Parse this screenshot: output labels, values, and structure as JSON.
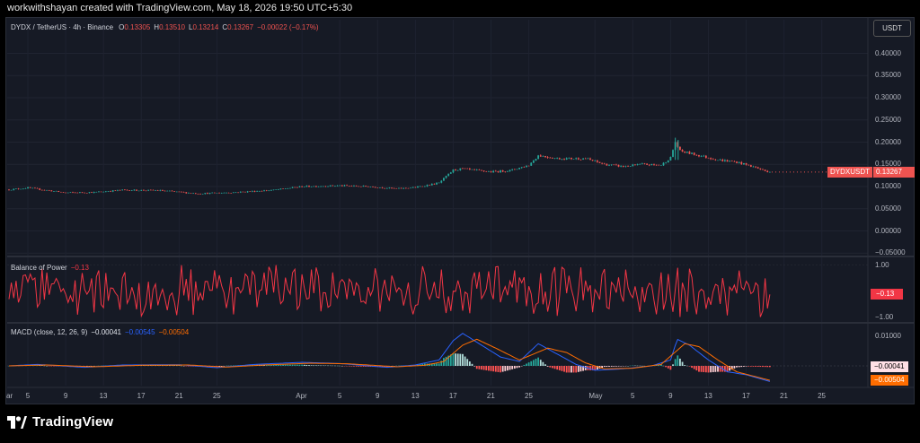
{
  "credit": "workwithshayan created with TradingView.com, May 18, 2026 19:50 UTC+5:30",
  "brand": "TradingView",
  "currency_button": "USDT",
  "main_legend": {
    "symbol": "DYDX / TetherUS · 4h · Binance",
    "o_label": "O",
    "o": "0.13305",
    "h_label": "H",
    "h": "0.13510",
    "l_label": "L",
    "l": "0.13214",
    "c_label": "C",
    "c": "0.13267",
    "change": "−0.00022 (−0.17%)"
  },
  "price_badge": {
    "symbol": "DYDXUSDT",
    "value": "0.13267"
  },
  "bop_legend": {
    "name": "Balance of Power",
    "value": "−0.13"
  },
  "bop_badge": "−0.13",
  "macd_legend": {
    "name": "MACD (close, 12, 26, 9)",
    "hist": "−0.00041",
    "macd": "−0.00545",
    "signal": "−0.00504"
  },
  "macd_badges": {
    "hist": "−0.00041",
    "signal": "−0.00504"
  },
  "colors": {
    "up": "#26a69a",
    "down": "#ef5350",
    "bop": "#f23645",
    "macd": "#2962ff",
    "signal": "#ff6d00",
    "bg": "#161a25"
  },
  "chart_data": [
    {
      "type": "candlestick",
      "title": "DYDX / TetherUS · 4h · Binance",
      "x_ticks": [
        "ar",
        "5",
        "9",
        "13",
        "17",
        "21",
        "25",
        "Apr",
        "5",
        "9",
        "13",
        "17",
        "21",
        "25",
        "May",
        "5",
        "9",
        "13",
        "17",
        "21",
        "25"
      ],
      "y_ticks": [
        "0.40000",
        "0.35000",
        "0.30000",
        "0.25000",
        "0.20000",
        "0.15000",
        "0.10000",
        "0.05000",
        "0.00000",
        "−0.05000"
      ],
      "ylim": [
        -0.065,
        0.41
      ],
      "grid": true,
      "close_path": [
        {
          "day": 0,
          "v": 0.093
        },
        {
          "day": 2,
          "v": 0.097
        },
        {
          "day": 6,
          "v": 0.086
        },
        {
          "day": 9,
          "v": 0.087
        },
        {
          "day": 12,
          "v": 0.092
        },
        {
          "day": 16,
          "v": 0.091
        },
        {
          "day": 20,
          "v": 0.084
        },
        {
          "day": 24,
          "v": 0.087
        },
        {
          "day": 28,
          "v": 0.092
        },
        {
          "day": 31,
          "v": 0.1
        },
        {
          "day": 35,
          "v": 0.102
        },
        {
          "day": 38,
          "v": 0.1
        },
        {
          "day": 41,
          "v": 0.095
        },
        {
          "day": 43,
          "v": 0.098
        },
        {
          "day": 45.5,
          "v": 0.108
        },
        {
          "day": 47,
          "v": 0.137
        },
        {
          "day": 48,
          "v": 0.14
        },
        {
          "day": 49,
          "v": 0.137
        },
        {
          "day": 51,
          "v": 0.133
        },
        {
          "day": 53,
          "v": 0.136
        },
        {
          "day": 55,
          "v": 0.148
        },
        {
          "day": 56,
          "v": 0.17
        },
        {
          "day": 58,
          "v": 0.163
        },
        {
          "day": 61,
          "v": 0.163
        },
        {
          "day": 63,
          "v": 0.15
        },
        {
          "day": 65,
          "v": 0.145
        },
        {
          "day": 67,
          "v": 0.15
        },
        {
          "day": 69,
          "v": 0.148
        },
        {
          "day": 70,
          "v": 0.165
        },
        {
          "day": 70.5,
          "v": 0.2
        },
        {
          "day": 71,
          "v": 0.18
        },
        {
          "day": 73,
          "v": 0.17
        },
        {
          "day": 75,
          "v": 0.16
        },
        {
          "day": 77,
          "v": 0.155
        },
        {
          "day": 79,
          "v": 0.143
        },
        {
          "day": 80,
          "v": 0.135
        },
        {
          "day": 80.7,
          "v": 0.1327
        }
      ],
      "last_close": 0.13267
    },
    {
      "type": "line",
      "title": "Balance of Power",
      "y_ticks": [
        "1.00",
        "−1.00"
      ],
      "ylim": [
        -1.1,
        1.1
      ],
      "last_value": -0.13
    },
    {
      "type": "line+histogram",
      "title": "MACD (close, 12, 26, 9)",
      "y_ticks": [
        "0.01000"
      ],
      "ylim": [
        -0.0065,
        0.0135
      ],
      "series": [
        {
          "name": "MACD",
          "color": "#2962ff",
          "points": [
            {
              "day": 0,
              "v": 0.0
            },
            {
              "day": 3,
              "v": 0.0005
            },
            {
              "day": 8,
              "v": -0.0005
            },
            {
              "day": 12,
              "v": 0.0003
            },
            {
              "day": 18,
              "v": 0.0004
            },
            {
              "day": 22,
              "v": -0.0006
            },
            {
              "day": 26,
              "v": 0.0005
            },
            {
              "day": 31,
              "v": 0.0012
            },
            {
              "day": 35,
              "v": 0.0008
            },
            {
              "day": 40,
              "v": -0.0005
            },
            {
              "day": 43,
              "v": 0.0003
            },
            {
              "day": 45.5,
              "v": 0.002
            },
            {
              "day": 47,
              "v": 0.0085
            },
            {
              "day": 48,
              "v": 0.011
            },
            {
              "day": 50,
              "v": 0.007
            },
            {
              "day": 52,
              "v": 0.003
            },
            {
              "day": 54,
              "v": 0.0015
            },
            {
              "day": 56,
              "v": 0.0075
            },
            {
              "day": 58,
              "v": 0.004
            },
            {
              "day": 60,
              "v": 0.0005
            },
            {
              "day": 62,
              "v": -0.0015
            },
            {
              "day": 65,
              "v": -0.001
            },
            {
              "day": 68,
              "v": 0.0
            },
            {
              "day": 70,
              "v": 0.002
            },
            {
              "day": 70.7,
              "v": 0.009
            },
            {
              "day": 72,
              "v": 0.007
            },
            {
              "day": 74,
              "v": 0.002
            },
            {
              "day": 76,
              "v": -0.002
            },
            {
              "day": 78,
              "v": -0.003
            },
            {
              "day": 80.7,
              "v": -0.00545
            }
          ]
        },
        {
          "name": "Signal",
          "color": "#ff6d00",
          "points": [
            {
              "day": 0,
              "v": 0.0
            },
            {
              "day": 4,
              "v": 0.0003
            },
            {
              "day": 9,
              "v": -0.0003
            },
            {
              "day": 14,
              "v": 0.0002
            },
            {
              "day": 19,
              "v": 0.0003
            },
            {
              "day": 23,
              "v": -0.0004
            },
            {
              "day": 27,
              "v": 0.0003
            },
            {
              "day": 32,
              "v": 0.0009
            },
            {
              "day": 36,
              "v": 0.0007
            },
            {
              "day": 41,
              "v": -0.0003
            },
            {
              "day": 44,
              "v": 0.0002
            },
            {
              "day": 46,
              "v": 0.0015
            },
            {
              "day": 48,
              "v": 0.007
            },
            {
              "day": 49.5,
              "v": 0.009
            },
            {
              "day": 51.5,
              "v": 0.006
            },
            {
              "day": 54,
              "v": 0.002
            },
            {
              "day": 57,
              "v": 0.006
            },
            {
              "day": 59,
              "v": 0.0045
            },
            {
              "day": 61,
              "v": 0.001
            },
            {
              "day": 63,
              "v": -0.001
            },
            {
              "day": 66,
              "v": -0.0008
            },
            {
              "day": 69,
              "v": 0.0005
            },
            {
              "day": 71.5,
              "v": 0.0075
            },
            {
              "day": 73,
              "v": 0.0065
            },
            {
              "day": 75,
              "v": 0.002
            },
            {
              "day": 77,
              "v": -0.002
            },
            {
              "day": 80.7,
              "v": -0.00504
            }
          ]
        },
        {
          "name": "Histogram",
          "last": -0.00041
        }
      ]
    }
  ]
}
